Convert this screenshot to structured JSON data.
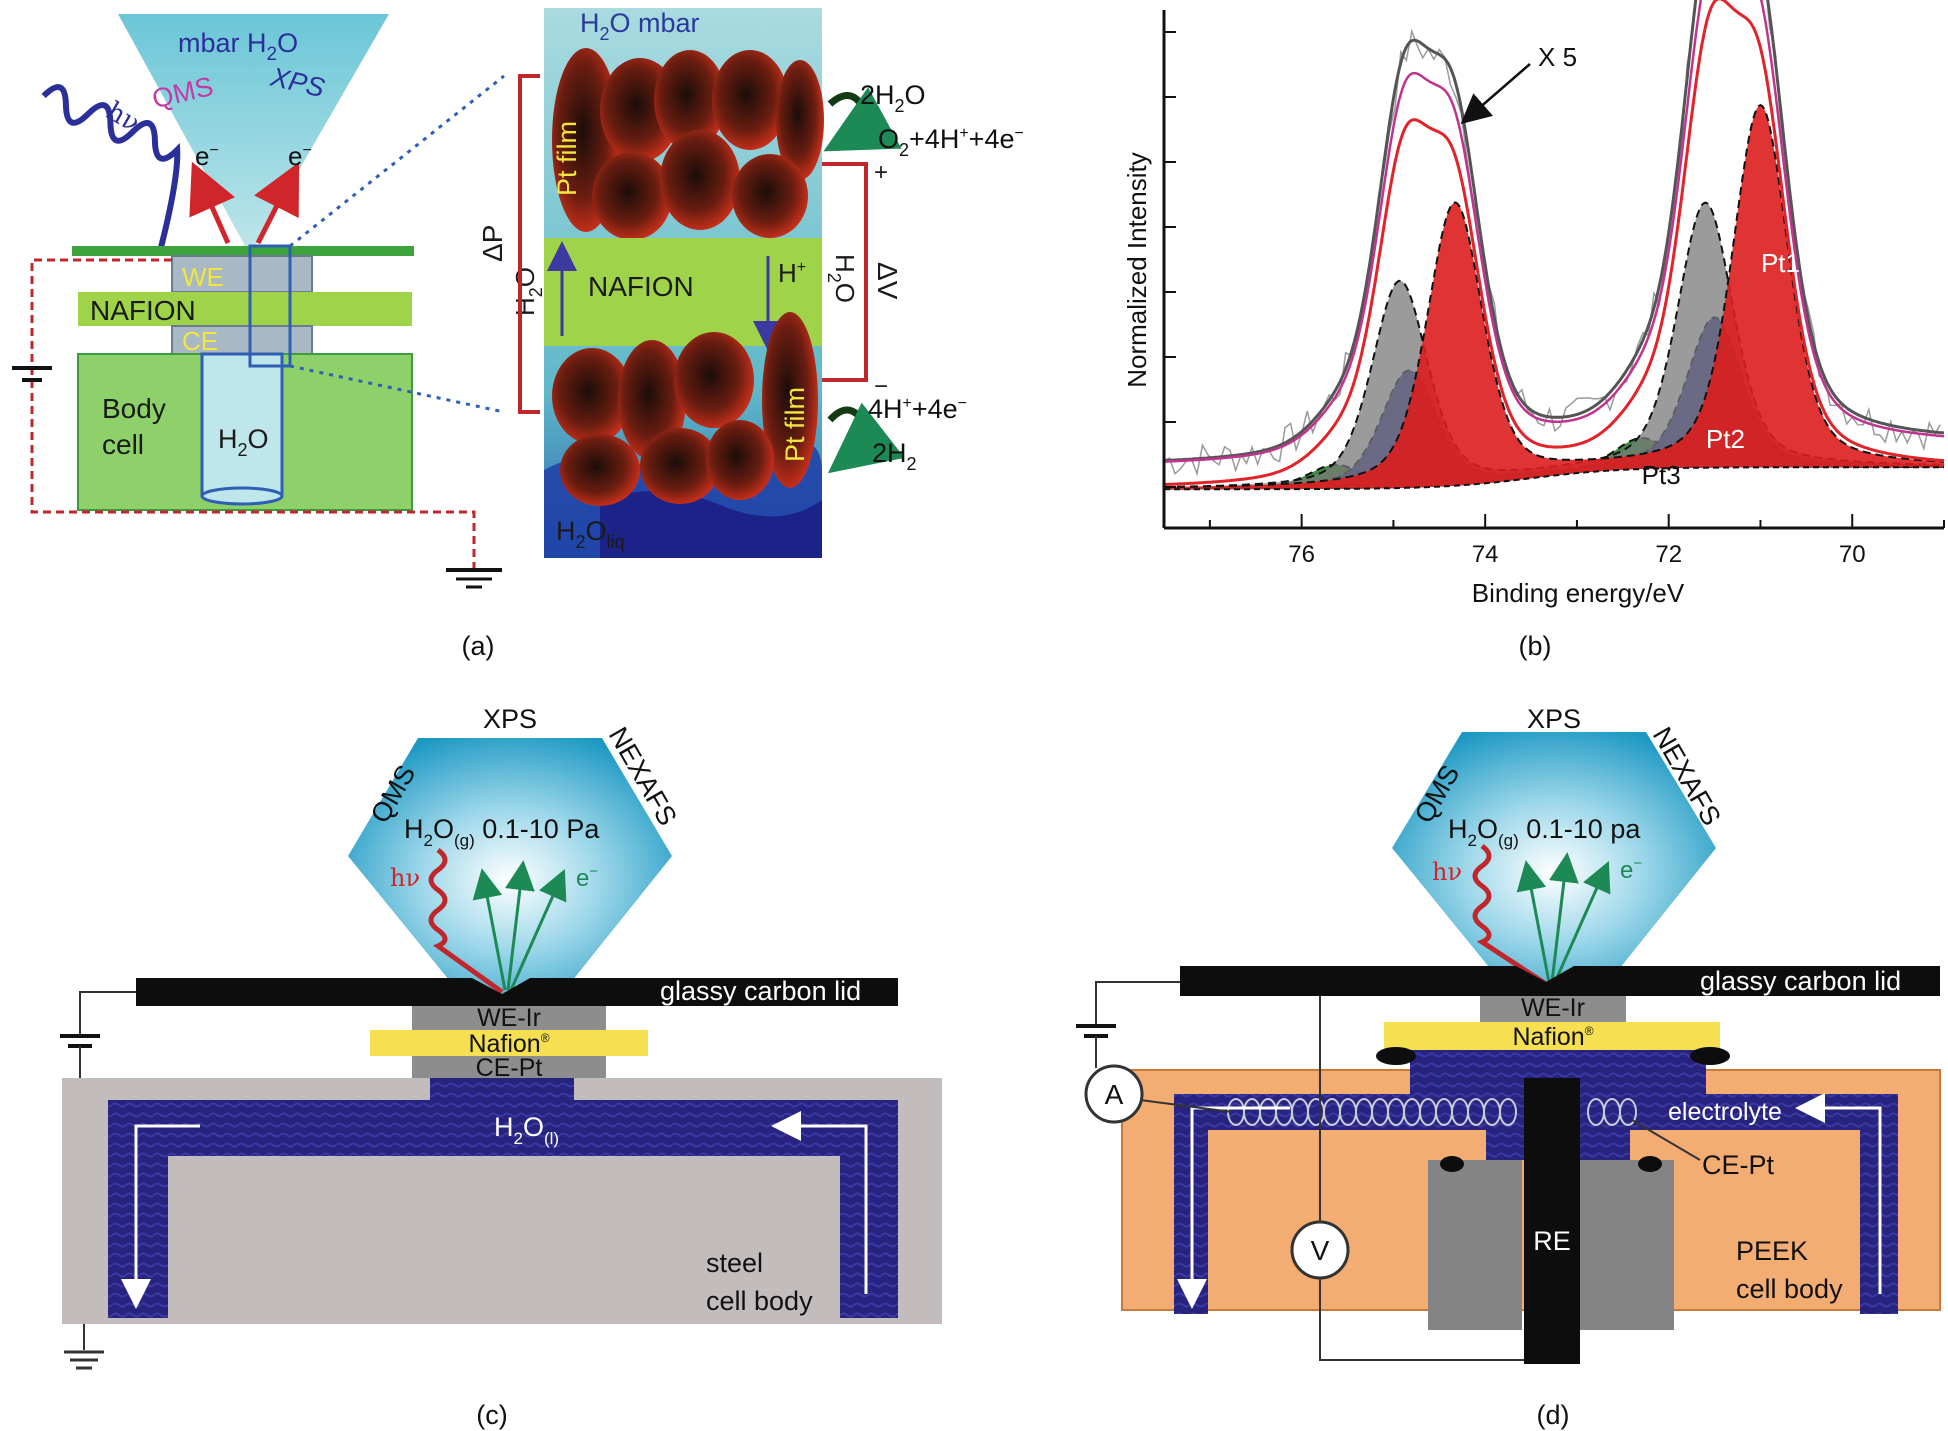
{
  "panels": {
    "a": {
      "caption": "(a)",
      "cone_label": "mbar H",
      "cone_label_sub": "2",
      "cone_label_end": "O",
      "qms": "QMS",
      "xps": "XPS",
      "hv": "hν",
      "e1": "e",
      "e2": "e",
      "we": "WE",
      "nafion": "NAFION",
      "ce": "CE",
      "body": "Body",
      "cell": "cell",
      "h2o_tube": "H",
      "h2o_tube_sub": "2",
      "h2o_tube_end": "O",
      "zoom_top": "H",
      "zoom_top_sub": "2",
      "zoom_top_end": "O mbar",
      "pt_film_top": "Pt film",
      "pt_film_bottom": "Pt film",
      "zoom_nafion": "NAFION",
      "zoom_liq": "H",
      "zoom_liq_sub": "2",
      "zoom_liq_o": "O",
      "zoom_liq_sub2": "liq",
      "delta_p": "ΔP",
      "delta_v": "ΔV",
      "h_plus": "H",
      "h2o_left": "H",
      "h2o_left_sub": "2",
      "h2o_left_end": "O",
      "h2o_right": "H",
      "h2o_right_sub": "2",
      "h2o_right_end": "O",
      "plus_sign": "+",
      "minus_sign": "−",
      "rxn_top_1": "2H",
      "rxn_top_1_sub": "2",
      "rxn_top_1_end": "O",
      "rxn_top_2": "O",
      "rxn_top_2_sub": "2",
      "rxn_top_2_end": "+4H",
      "rxn_top_2_tail": "+4e",
      "rxn_bot_1": "4H",
      "rxn_bot_1_end": "+4e",
      "rxn_bot_2": "2H",
      "rxn_bot_2_sub": "2"
    },
    "b": {
      "caption": "(b)",
      "annotation": "X 5"
    },
    "c": {
      "caption": "(c)",
      "xps": "XPS",
      "qms": "QMS",
      "nexafs": "NEXAFS",
      "gas": "H",
      "gas_sub": "2",
      "gas_o": "O",
      "gas_sub2": "(g)",
      "gas_range": " 0.1-10 Pa",
      "hv": "hν",
      "e": "e",
      "lid": "glassy carbon lid",
      "we": "WE-Ir",
      "nafion": "Nafion",
      "ce": "CE-Pt",
      "water": "H",
      "water_sub": "2",
      "water_o": "O",
      "water_sub2": "(l)",
      "body1": "steel",
      "body2": "cell body"
    },
    "d": {
      "caption": "(d)",
      "xps": "XPS",
      "qms": "QMS",
      "nexafs": "NEXAFS",
      "gas": "H",
      "gas_sub": "2",
      "gas_o": "O",
      "gas_sub2": "(g)",
      "gas_range": " 0.1-10 pa",
      "hv": "hν",
      "e": "e",
      "lid": "glassy carbon lid",
      "we": "WE-Ir",
      "nafion": "Nafion",
      "ammeter": "A",
      "voltmeter": "V",
      "electrolyte": "electrolyte",
      "ce": "CE-Pt",
      "re": "RE",
      "body1": "PEEK",
      "body2": "cell body"
    }
  },
  "chart_data": {
    "type": "line",
    "xlabel": "Binding energy/eV",
    "ylabel": "Normalized Intensity",
    "xlim": [
      77.5,
      69
    ],
    "x_reversed": true,
    "x_ticks": [
      76,
      74,
      72,
      70
    ],
    "y_ticks_labeled": false,
    "components": [
      {
        "name": "Pt1",
        "color": "#dd1d1d",
        "peaks_eV": [
          71.0,
          74.33
        ],
        "height": 0.82
      },
      {
        "name": "Pt2",
        "color": "#2a2aa0",
        "peaks_eV": [
          71.5,
          74.83
        ],
        "height": 0.34
      },
      {
        "name": "Pt3",
        "color": "#2e7d32",
        "peaks_eV": [
          72.3,
          75.63
        ],
        "height": 0.07
      },
      {
        "name": "",
        "color": "#7a7a7a",
        "peaks_eV": [
          71.6,
          74.93
        ],
        "height": 0.6
      }
    ]
  },
  "colors": {
    "cyan": "#27a3c9",
    "nafion_green": "#9fd44a",
    "body_green": "#8ed16a",
    "deep_blue": "#24208a",
    "steel": "#c2bcbc",
    "peek": "#f3ad73",
    "yellow": "#f6e052",
    "red": "#c0272d"
  }
}
